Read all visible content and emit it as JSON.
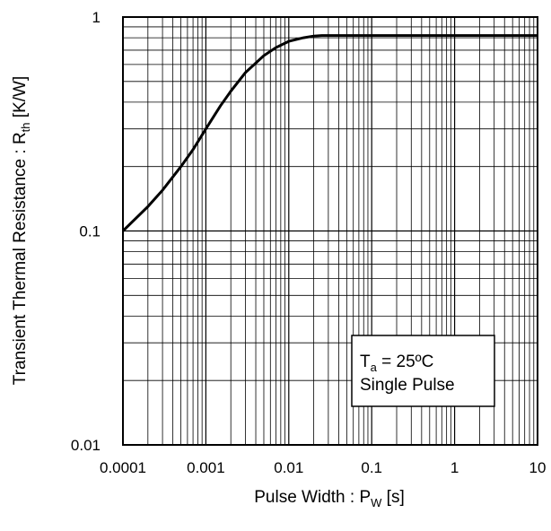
{
  "chart_data": {
    "type": "line",
    "title": "",
    "xscale": "log",
    "yscale": "log",
    "xlim": [
      0.0001,
      10
    ],
    "ylim": [
      0.01,
      1
    ],
    "grid": true,
    "xlabel": {
      "main": "Pulse Width : P",
      "sub": "W",
      "unit": " [s]"
    },
    "ylabel": {
      "main": "Transient Thermal Resistance : R",
      "sub": "th",
      "unit": " [K/W]"
    },
    "x_tick_labels": [
      {
        "value": 0.0001,
        "label": "0.0001"
      },
      {
        "value": 0.001,
        "label": "0.001"
      },
      {
        "value": 0.01,
        "label": "0.01"
      },
      {
        "value": 0.1,
        "label": "0.1"
      },
      {
        "value": 1,
        "label": "1"
      },
      {
        "value": 10,
        "label": "10"
      }
    ],
    "y_tick_labels": [
      {
        "value": 0.01,
        "label": "0.01"
      },
      {
        "value": 0.1,
        "label": "0.1"
      },
      {
        "value": 1,
        "label": "1"
      }
    ],
    "annotation": {
      "line1_prefix": "T",
      "line1_sub": "a",
      "line1_rest": " = 25ºC",
      "line2": "Single Pulse"
    },
    "series": [
      {
        "x": [
          0.0001,
          0.0002,
          0.0003,
          0.0005,
          0.0007,
          0.001,
          0.0015,
          0.002,
          0.003,
          0.005,
          0.007,
          0.01,
          0.015,
          0.02,
          0.025,
          0.03,
          0.05,
          0.1,
          1,
          10
        ],
        "y": [
          0.1,
          0.13,
          0.155,
          0.2,
          0.24,
          0.3,
          0.385,
          0.45,
          0.55,
          0.66,
          0.72,
          0.77,
          0.8,
          0.815,
          0.82,
          0.82,
          0.82,
          0.82,
          0.82,
          0.82
        ]
      }
    ]
  }
}
